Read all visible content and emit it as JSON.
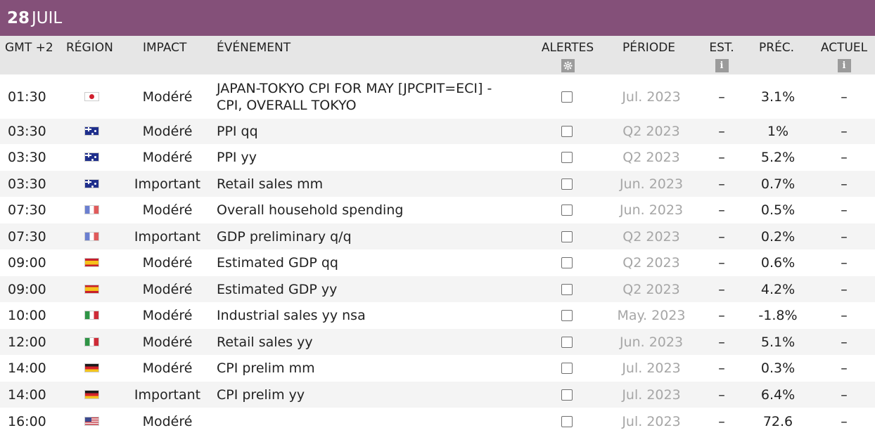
{
  "date": {
    "day": "28",
    "month": "JUIL"
  },
  "header": {
    "gmt": "GMT +2",
    "region": "RÉGION",
    "impact": "IMPACT",
    "event": "ÉVÉNEMENT",
    "alerts": "ALERTES",
    "period": "PÉRIODE",
    "est": "EST.",
    "prec": "PRÉC.",
    "actual": "ACTUEL",
    "info_glyph": "i",
    "alerts_icon": "gear-icon"
  },
  "rows": [
    {
      "time": "01:30",
      "flag": "jp",
      "impact": "Modéré",
      "event_line1": "JAPAN-TOKYO CPI FOR MAY [JPCPIT=ECI] -",
      "event_line2": "CPI, OVERALL TOKYO",
      "period": "Jul. 2023",
      "est": "–",
      "prec": "3.1%",
      "actual": "–"
    },
    {
      "time": "03:30",
      "flag": "au",
      "impact": "Modéré",
      "event": "PPI qq",
      "period": "Q2 2023",
      "est": "–",
      "prec": "1%",
      "actual": "–"
    },
    {
      "time": "03:30",
      "flag": "au",
      "impact": "Modéré",
      "event": "PPI yy",
      "period": "Q2 2023",
      "est": "–",
      "prec": "5.2%",
      "actual": "–"
    },
    {
      "time": "03:30",
      "flag": "au",
      "impact": "Important",
      "event": "Retail sales mm",
      "period": "Jun. 2023",
      "est": "–",
      "prec": "0.7%",
      "actual": "–"
    },
    {
      "time": "07:30",
      "flag": "fr",
      "impact": "Modéré",
      "event": "Overall household spending",
      "period": "Jun. 2023",
      "est": "–",
      "prec": "0.5%",
      "actual": "–"
    },
    {
      "time": "07:30",
      "flag": "fr",
      "impact": "Important",
      "event": "GDP preliminary q/q",
      "period": "Q2 2023",
      "est": "–",
      "prec": "0.2%",
      "actual": "–"
    },
    {
      "time": "09:00",
      "flag": "es",
      "impact": "Modéré",
      "event": "Estimated GDP qq",
      "period": "Q2 2023",
      "est": "–",
      "prec": "0.6%",
      "actual": "–"
    },
    {
      "time": "09:00",
      "flag": "es",
      "impact": "Modéré",
      "event": "Estimated GDP yy",
      "period": "Q2 2023",
      "est": "–",
      "prec": "4.2%",
      "actual": "–"
    },
    {
      "time": "10:00",
      "flag": "it",
      "impact": "Modéré",
      "event": "Industrial sales yy nsa",
      "period": "May. 2023",
      "est": "–",
      "prec": "-1.8%",
      "actual": "–"
    },
    {
      "time": "12:00",
      "flag": "it",
      "impact": "Modéré",
      "event": "Retail sales yy",
      "period": "Jun. 2023",
      "est": "–",
      "prec": "5.1%",
      "actual": "–"
    },
    {
      "time": "14:00",
      "flag": "de",
      "impact": "Modéré",
      "event": "CPI prelim mm",
      "period": "Jul. 2023",
      "est": "–",
      "prec": "0.3%",
      "actual": "–"
    },
    {
      "time": "14:00",
      "flag": "de",
      "impact": "Important",
      "event": "CPI prelim yy",
      "period": "Jul. 2023",
      "est": "–",
      "prec": "6.4%",
      "actual": "–"
    },
    {
      "time": "16:00",
      "flag": "us",
      "impact": "Modéré",
      "event": "",
      "period": "Jul. 2023",
      "est": "–",
      "prec": "72.6",
      "actual": "–"
    }
  ]
}
